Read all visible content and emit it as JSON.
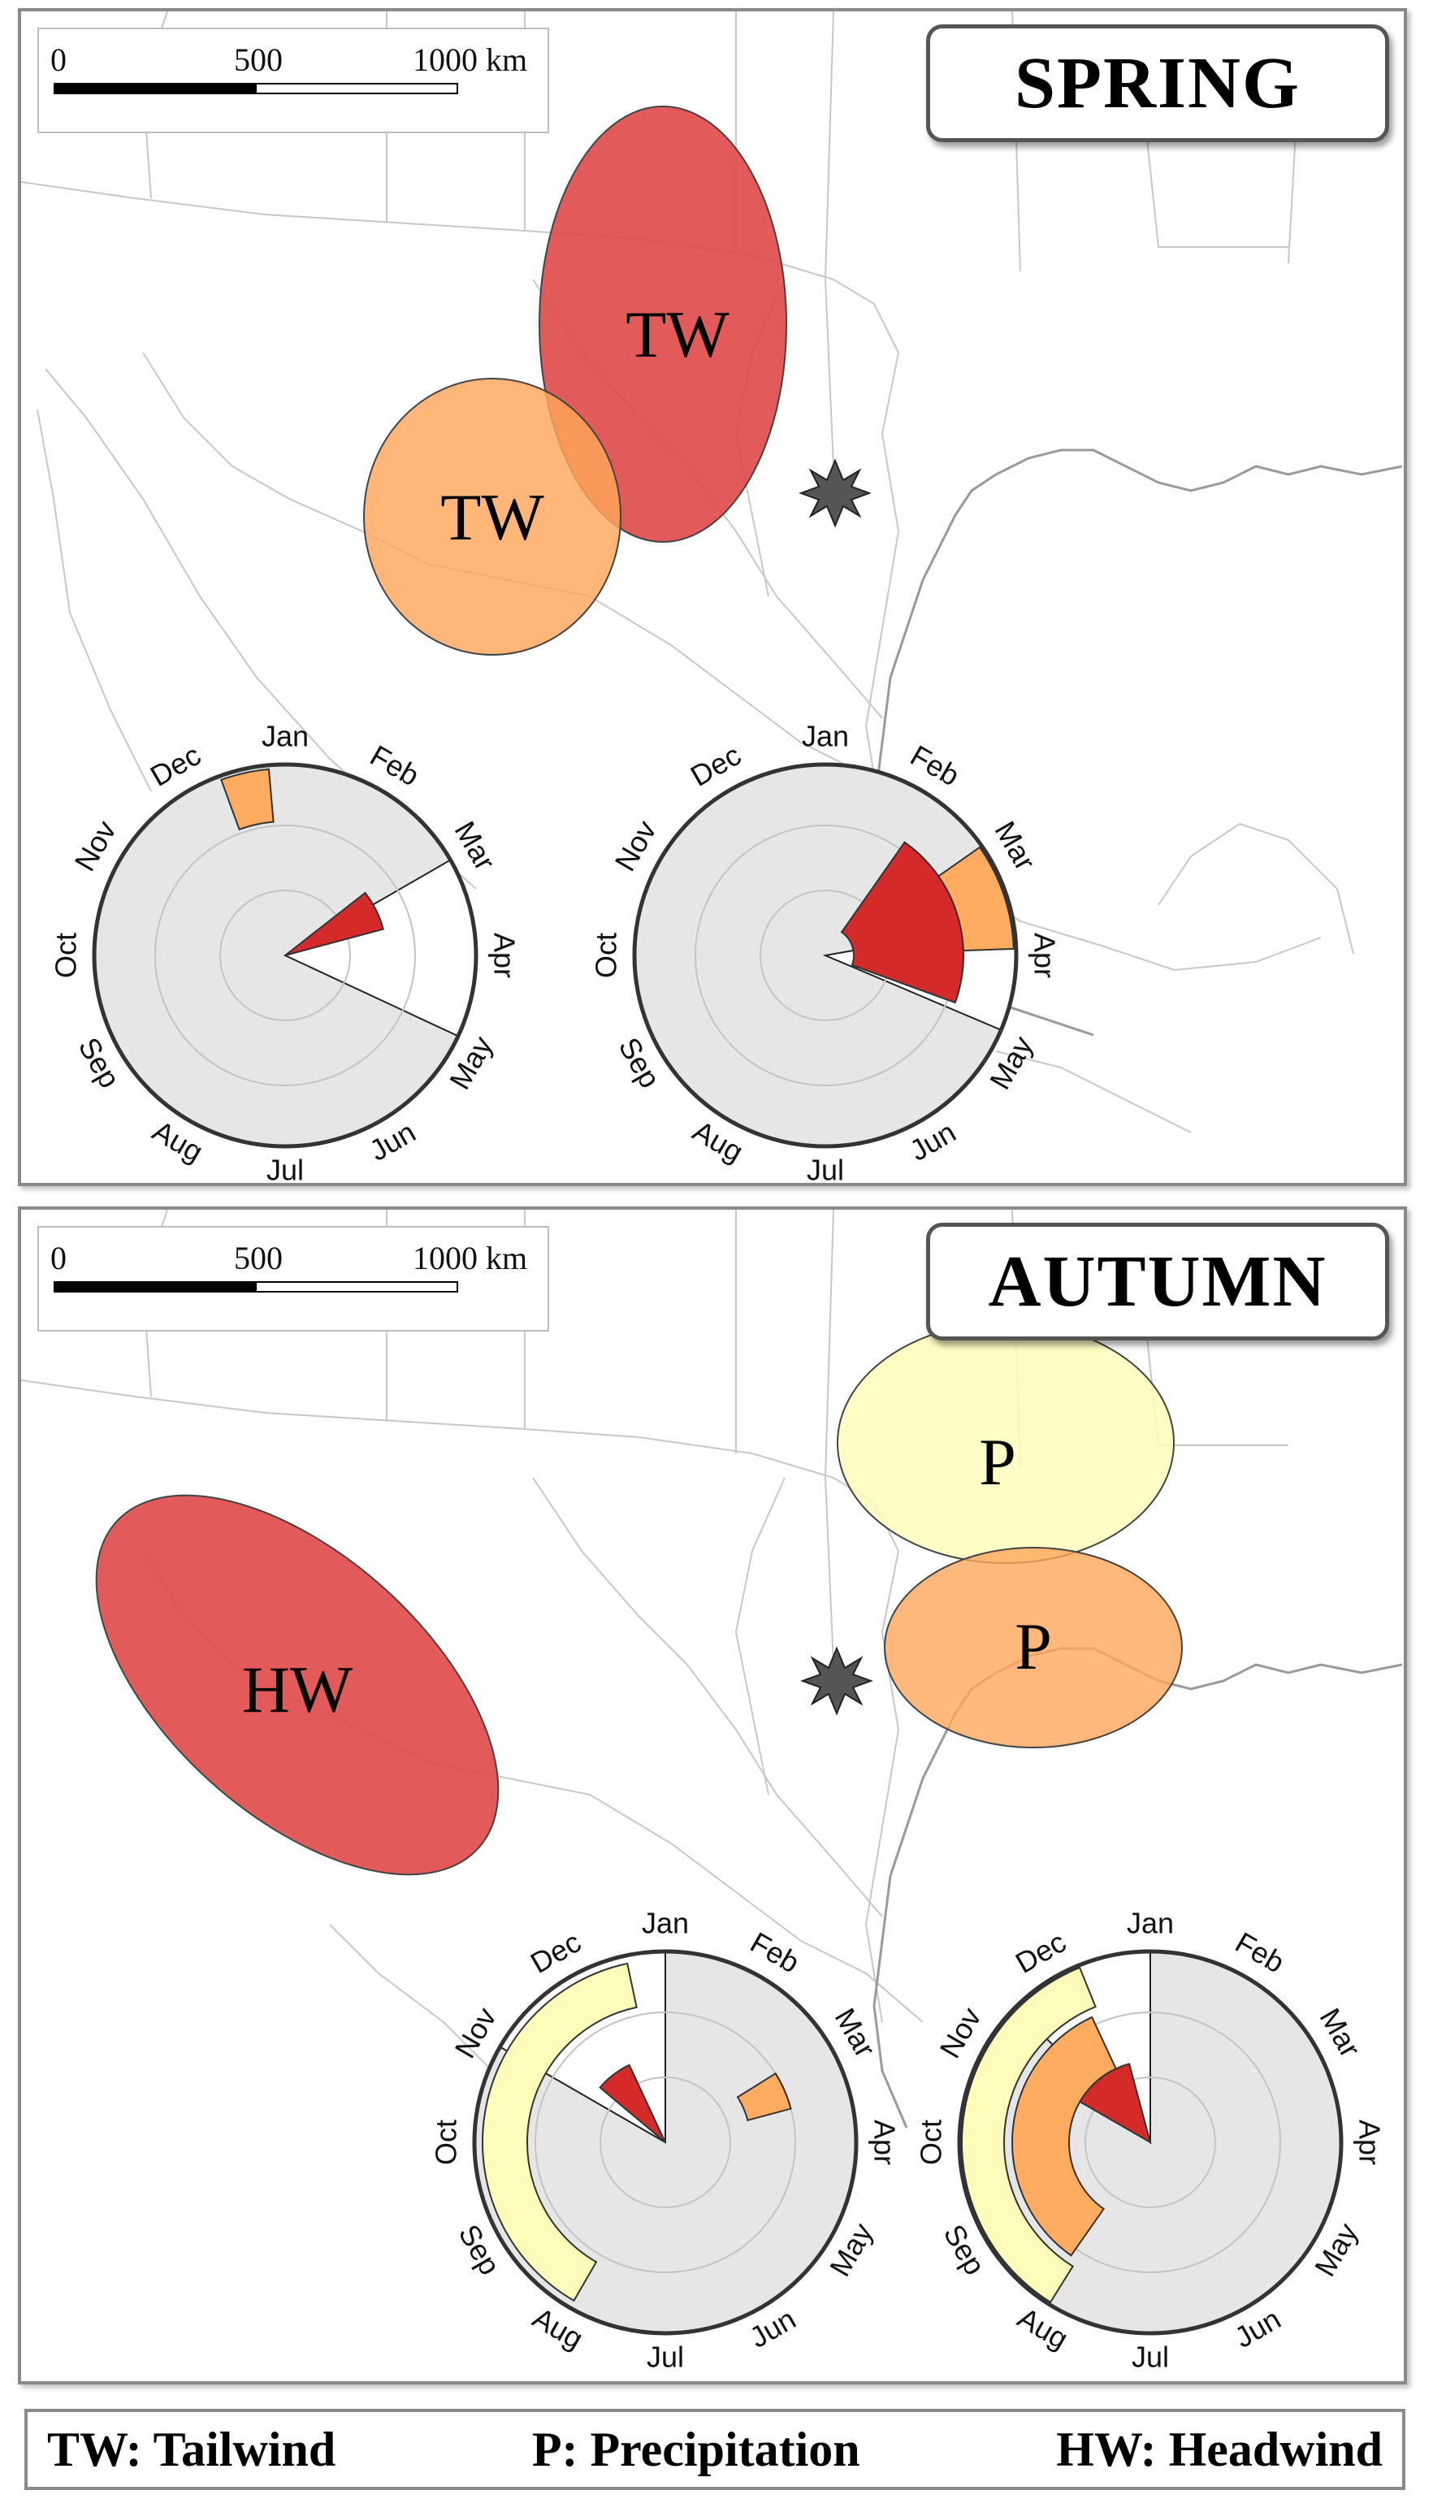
{
  "scale_bar": {
    "labels": [
      "0",
      "500",
      "1000 km"
    ]
  },
  "spring": {
    "title": "SPRING",
    "zones": [
      {
        "label": "TW",
        "color": "#e04848"
      },
      {
        "label": "TW",
        "color": "#ffac60"
      }
    ]
  },
  "autumn": {
    "title": "AUTUMN",
    "zones": [
      {
        "label": "HW",
        "color": "#e04848"
      },
      {
        "label": "P",
        "color": "#fffbbb"
      },
      {
        "label": "P",
        "color": "#ffac60"
      }
    ]
  },
  "month_labels": [
    "Jan",
    "Feb",
    "Mar",
    "Apr",
    "May",
    "Jun",
    "Jul",
    "Aug",
    "Sep",
    "Oct",
    "Nov",
    "Dec"
  ],
  "legend": {
    "tailwind": "TW: Tailwind",
    "precipitation": "P: Precipitation",
    "headwind": "HW: Headwind"
  },
  "colors": {
    "tailwind_dark": "#d42a2a",
    "tailwind_light": "#ffac60",
    "precipitation": "#fffbbb",
    "dial_fill": "#e6e6e6",
    "outline": "#333333"
  }
}
